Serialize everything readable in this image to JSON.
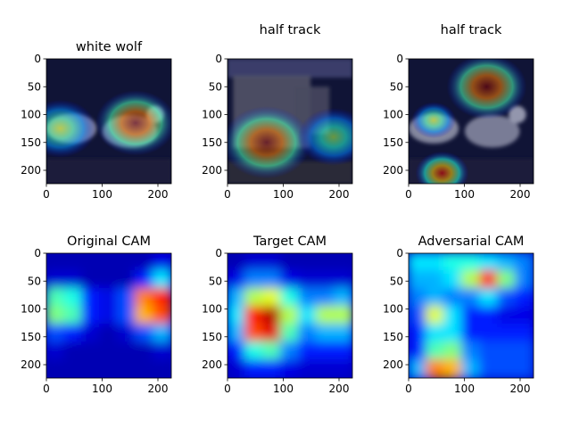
{
  "chart_data": [
    {
      "type": "heatmap",
      "panel": "overlay",
      "title": "white wolf",
      "scene": "wolves",
      "xlim": [
        0,
        224
      ],
      "ylim": [
        224,
        0
      ],
      "xticks": [
        0,
        100,
        200
      ],
      "yticks": [
        0,
        50,
        100,
        150,
        200
      ],
      "hotspots": [
        {
          "x": 160,
          "y": 115,
          "value": 1.0,
          "spread": 45
        },
        {
          "x": 25,
          "y": 125,
          "value": 0.6,
          "spread": 40
        }
      ]
    },
    {
      "type": "heatmap",
      "panel": "overlay",
      "title": "half track",
      "scene": "truck",
      "xlim": [
        0,
        224
      ],
      "ylim": [
        224,
        0
      ],
      "xticks": [
        0,
        100,
        200
      ],
      "yticks": [
        0,
        50,
        100,
        150,
        200
      ],
      "hotspots": [
        {
          "x": 70,
          "y": 150,
          "value": 1.0,
          "spread": 50
        },
        {
          "x": 190,
          "y": 140,
          "value": 0.55,
          "spread": 40
        }
      ]
    },
    {
      "type": "heatmap",
      "panel": "overlay",
      "title": "half track",
      "scene": "wolves",
      "xlim": [
        0,
        224
      ],
      "ylim": [
        224,
        0
      ],
      "xticks": [
        0,
        100,
        200
      ],
      "yticks": [
        0,
        50,
        100,
        150,
        200
      ],
      "hotspots": [
        {
          "x": 140,
          "y": 50,
          "value": 1.0,
          "spread": 45
        },
        {
          "x": 60,
          "y": 205,
          "value": 0.9,
          "spread": 30
        },
        {
          "x": 45,
          "y": 110,
          "value": 0.6,
          "spread": 25
        }
      ]
    },
    {
      "type": "heatmap",
      "panel": "cam",
      "title": "Original CAM",
      "xlim": [
        0,
        224
      ],
      "ylim": [
        224,
        0
      ],
      "xticks": [
        0,
        100,
        200
      ],
      "yticks": [
        0,
        50,
        100,
        150,
        200
      ],
      "grid": [
        [
          0.05,
          0.05,
          0.05,
          0.05,
          0.05,
          0.05,
          0.1
        ],
        [
          0.08,
          0.08,
          0.05,
          0.05,
          0.05,
          0.15,
          0.35
        ],
        [
          0.45,
          0.4,
          0.15,
          0.1,
          0.2,
          0.75,
          0.85
        ],
        [
          0.5,
          0.45,
          0.15,
          0.1,
          0.2,
          0.7,
          0.8
        ],
        [
          0.2,
          0.15,
          0.08,
          0.05,
          0.08,
          0.2,
          0.3
        ],
        [
          0.08,
          0.05,
          0.05,
          0.05,
          0.05,
          0.05,
          0.08
        ],
        [
          0.05,
          0.05,
          0.05,
          0.05,
          0.05,
          0.05,
          0.05
        ]
      ]
    },
    {
      "type": "heatmap",
      "panel": "cam",
      "title": "Target CAM",
      "xlim": [
        0,
        224
      ],
      "ylim": [
        224,
        0
      ],
      "xticks": [
        0,
        100,
        200
      ],
      "yticks": [
        0,
        50,
        100,
        150,
        200
      ],
      "grid": [
        [
          0.05,
          0.08,
          0.08,
          0.05,
          0.05,
          0.05,
          0.05
        ],
        [
          0.1,
          0.25,
          0.25,
          0.1,
          0.08,
          0.08,
          0.08
        ],
        [
          0.3,
          0.55,
          0.6,
          0.4,
          0.25,
          0.25,
          0.3
        ],
        [
          0.35,
          0.85,
          0.95,
          0.55,
          0.35,
          0.55,
          0.55
        ],
        [
          0.3,
          0.8,
          0.9,
          0.45,
          0.25,
          0.3,
          0.3
        ],
        [
          0.15,
          0.4,
          0.45,
          0.25,
          0.15,
          0.15,
          0.15
        ],
        [
          0.08,
          0.15,
          0.15,
          0.1,
          0.08,
          0.08,
          0.08
        ]
      ]
    },
    {
      "type": "heatmap",
      "panel": "cam",
      "title": "Adversarial CAM",
      "xlim": [
        0,
        224
      ],
      "ylim": [
        224,
        0
      ],
      "xticks": [
        0,
        100,
        200
      ],
      "yticks": [
        0,
        50,
        100,
        150,
        200
      ],
      "grid": [
        [
          0.35,
          0.35,
          0.4,
          0.4,
          0.35,
          0.3,
          0.25
        ],
        [
          0.3,
          0.3,
          0.35,
          0.55,
          0.85,
          0.5,
          0.25
        ],
        [
          0.25,
          0.3,
          0.25,
          0.25,
          0.35,
          0.2,
          0.15
        ],
        [
          0.2,
          0.6,
          0.35,
          0.15,
          0.15,
          0.1,
          0.1
        ],
        [
          0.15,
          0.35,
          0.35,
          0.15,
          0.15,
          0.15,
          0.15
        ],
        [
          0.15,
          0.45,
          0.5,
          0.25,
          0.2,
          0.2,
          0.2
        ],
        [
          0.3,
          0.75,
          0.7,
          0.3,
          0.2,
          0.2,
          0.2
        ]
      ]
    }
  ]
}
